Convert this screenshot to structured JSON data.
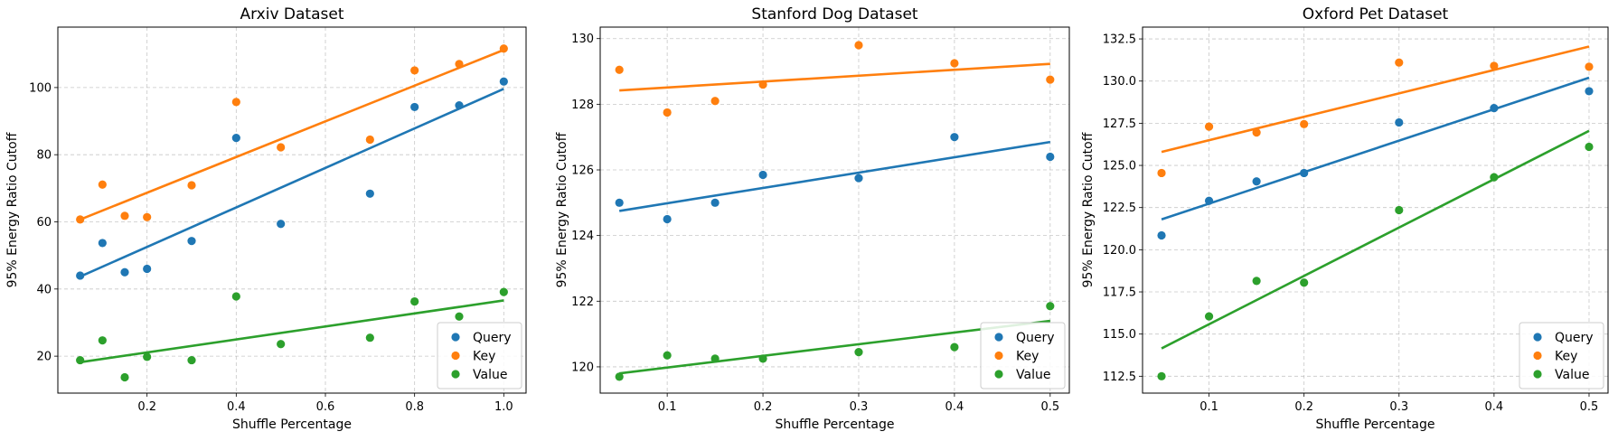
{
  "chart_data": [
    {
      "type": "scatter",
      "title": "Arxiv Dataset",
      "xlabel": "Shuffle Percentage",
      "ylabel": "95% Energy Ratio Cutoff",
      "xlim": [
        0.0,
        1.05
      ],
      "ylim": [
        9,
        118
      ],
      "xticks": [
        0.2,
        0.4,
        0.6,
        0.8,
        1.0
      ],
      "xtick_labels": [
        "0.2",
        "0.4",
        "0.6",
        "0.8",
        "1.0"
      ],
      "yticks": [
        20,
        40,
        60,
        80,
        100
      ],
      "ytick_labels": [
        "20",
        "40",
        "60",
        "80",
        "100"
      ],
      "grid": true,
      "legend_position": "bottom-right",
      "x": [
        0.05,
        0.1,
        0.15,
        0.2,
        0.3,
        0.4,
        0.5,
        0.7,
        0.8,
        0.9,
        1.0
      ],
      "series": [
        {
          "name": "Query",
          "color": "#1f77b4",
          "y": [
            44,
            53.7,
            45,
            46,
            54.3,
            85,
            59.4,
            68.4,
            94.2,
            94.7,
            101.8
          ],
          "fit": [
            [
              0.05,
              43.7
            ],
            [
              1.0,
              99.6
            ]
          ]
        },
        {
          "name": "Key",
          "color": "#ff7f0e",
          "y": [
            60.7,
            71.1,
            61.8,
            61.4,
            70.9,
            95.7,
            82.2,
            84.5,
            105.1,
            107,
            111.6
          ],
          "fit": [
            [
              0.05,
              60.7
            ],
            [
              1.0,
              111.2
            ]
          ]
        },
        {
          "name": "Value",
          "color": "#2ca02c",
          "y": [
            18.8,
            24.7,
            13.7,
            19.8,
            18.8,
            37.8,
            23.6,
            25.5,
            36.3,
            31.8,
            39.1
          ],
          "fit": [
            [
              0.05,
              18.2
            ],
            [
              1.0,
              36.6
            ]
          ]
        }
      ]
    },
    {
      "type": "scatter",
      "title": "Stanford Dog Dataset",
      "xlabel": "Shuffle Percentage",
      "ylabel": "95% Energy Ratio Cutoff",
      "xlim": [
        0.03,
        0.52
      ],
      "ylim": [
        119.2,
        130.35
      ],
      "xticks": [
        0.1,
        0.2,
        0.3,
        0.4,
        0.5
      ],
      "xtick_labels": [
        "0.1",
        "0.2",
        "0.3",
        "0.4",
        "0.5"
      ],
      "yticks": [
        120,
        122,
        124,
        126,
        128,
        130
      ],
      "ytick_labels": [
        "120",
        "122",
        "124",
        "126",
        "128",
        "130"
      ],
      "grid": true,
      "legend_position": "bottom-right",
      "x": [
        0.05,
        0.1,
        0.15,
        0.2,
        0.3,
        0.4,
        0.5
      ],
      "series": [
        {
          "name": "Query",
          "color": "#1f77b4",
          "y": [
            125,
            124.5,
            125,
            125.85,
            125.75,
            127,
            126.4
          ],
          "fit": [
            [
              0.05,
              124.75
            ],
            [
              0.5,
              126.85
            ]
          ]
        },
        {
          "name": "Key",
          "color": "#ff7f0e",
          "y": [
            129.05,
            127.75,
            128.1,
            128.6,
            129.8,
            129.25,
            128.75
          ],
          "fit": [
            [
              0.05,
              128.42
            ],
            [
              0.5,
              129.23
            ]
          ]
        },
        {
          "name": "Value",
          "color": "#2ca02c",
          "y": [
            119.7,
            120.35,
            120.25,
            120.25,
            120.45,
            120.6,
            121.85
          ],
          "fit": [
            [
              0.05,
              119.8
            ],
            [
              0.5,
              121.4
            ]
          ]
        }
      ]
    },
    {
      "type": "scatter",
      "title": "Oxford Pet Dataset",
      "xlabel": "Shuffle Percentage",
      "ylabel": "95% Energy Ratio Cutoff",
      "xlim": [
        0.03,
        0.52
      ],
      "ylim": [
        111.5,
        133.2
      ],
      "xticks": [
        0.1,
        0.2,
        0.3,
        0.4,
        0.5
      ],
      "xtick_labels": [
        "0.1",
        "0.2",
        "0.3",
        "0.4",
        "0.5"
      ],
      "yticks": [
        112.5,
        115.0,
        117.5,
        120.0,
        122.5,
        125.0,
        127.5,
        130.0,
        132.5
      ],
      "ytick_labels": [
        "112.5",
        "115.0",
        "117.5",
        "120.0",
        "122.5",
        "125.0",
        "127.5",
        "130.0",
        "132.5"
      ],
      "grid": true,
      "legend_position": "bottom-right",
      "x": [
        0.05,
        0.1,
        0.15,
        0.2,
        0.3,
        0.4,
        0.5
      ],
      "series": [
        {
          "name": "Query",
          "color": "#1f77b4",
          "y": [
            120.85,
            122.9,
            124.05,
            124.55,
            127.55,
            128.4,
            129.4
          ],
          "fit": [
            [
              0.05,
              121.8
            ],
            [
              0.5,
              130.2
            ]
          ]
        },
        {
          "name": "Key",
          "color": "#ff7f0e",
          "y": [
            124.55,
            127.3,
            126.95,
            127.45,
            131.1,
            130.9,
            130.85
          ],
          "fit": [
            [
              0.05,
              125.8
            ],
            [
              0.5,
              132.05
            ]
          ]
        },
        {
          "name": "Value",
          "color": "#2ca02c",
          "y": [
            112.5,
            116.05,
            118.15,
            118.05,
            122.35,
            124.3,
            126.1
          ],
          "fit": [
            [
              0.05,
              114.15
            ],
            [
              0.5,
              127.05
            ]
          ]
        }
      ]
    }
  ]
}
